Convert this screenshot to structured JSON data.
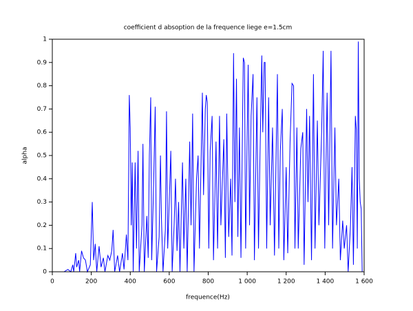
{
  "chart_data": {
    "type": "line",
    "title": "coefficient d absoption de la frequence liege e=1.5cm",
    "xlabel": "frequence(Hz)",
    "ylabel": "alpha",
    "xlim": [
      0,
      1600
    ],
    "ylim": [
      0,
      1
    ],
    "xticks": [
      0,
      200,
      400,
      600,
      800,
      {
        "value": 1000,
        "label": "1 000"
      },
      {
        "value": 1200,
        "label": "1 200"
      },
      {
        "value": 1400,
        "label": "1 400"
      },
      {
        "value": 1600,
        "label": "1 600"
      }
    ],
    "yticks": [
      0,
      0.1,
      0.2,
      0.3,
      0.4,
      0.5,
      0.6,
      0.7,
      0.8,
      0.9,
      1
    ],
    "series": [
      {
        "color": "#0000ff",
        "x": [
          0,
          60,
          80,
          95,
          105,
          110,
          120,
          125,
          135,
          140,
          150,
          160,
          170,
          180,
          195,
          205,
          212,
          220,
          228,
          240,
          250,
          262,
          270,
          285,
          295,
          305,
          312,
          320,
          335,
          345,
          360,
          368,
          380,
          388,
          395,
          400,
          405,
          410,
          415,
          425,
          432,
          440,
          446,
          460,
          465,
          472,
          485,
          492,
          498,
          505,
          510,
          520,
          528,
          535,
          548,
          555,
          560,
          568,
          580,
          586,
          592,
          600,
          608,
          615,
          625,
          632,
          640,
          648,
          655,
          668,
          675,
          685,
          692,
          705,
          712,
          720,
          727,
          740,
          748,
          755,
          770,
          776,
          785,
          790,
          795,
          803,
          810,
          820,
          827,
          840,
          848,
          858,
          865,
          880,
          888,
          895,
          905,
          915,
          922,
          930,
          937,
          945,
          952,
          960,
          968,
          980,
          986,
          992,
          1005,
          1012,
          1020,
          1030,
          1037,
          1050,
          1058,
          1065,
          1075,
          1080,
          1087,
          1092,
          1100,
          1110,
          1118,
          1130,
          1140,
          1155,
          1162,
          1170,
          1180,
          1188,
          1200,
          1208,
          1220,
          1230,
          1238,
          1245,
          1255,
          1262,
          1275,
          1285,
          1292,
          1305,
          1312,
          1320,
          1330,
          1340,
          1348,
          1360,
          1368,
          1382,
          1390,
          1398,
          1410,
          1418,
          1430,
          1438,
          1450,
          1458,
          1470,
          1478,
          1490,
          1498,
          1510,
          1518,
          1530,
          1538,
          1545,
          1555,
          1560,
          1565,
          1570,
          1575,
          1580,
          1585,
          1590,
          1600
        ],
        "values": [
          0,
          0,
          0.01,
          0,
          0.03,
          0,
          0.08,
          0.02,
          0.05,
          0,
          0.09,
          0.06,
          0.05,
          0,
          0.03,
          0.3,
          0.05,
          0.12,
          0,
          0.11,
          0.02,
          0.06,
          0,
          0.07,
          0.05,
          0.09,
          0.18,
          0,
          0.07,
          0,
          0.08,
          0.01,
          0.16,
          0.05,
          0.76,
          0.62,
          0.2,
          0.47,
          0,
          0.47,
          0.1,
          0.52,
          0,
          0.2,
          0.55,
          0,
          0.24,
          0.06,
          0.5,
          0.75,
          0.05,
          0.38,
          0.71,
          0,
          0.15,
          0.5,
          0.23,
          0,
          0.18,
          0.69,
          0.1,
          0.3,
          0.52,
          0,
          0.2,
          0.4,
          0.09,
          0.3,
          0,
          0.47,
          0.1,
          0.4,
          0,
          0.56,
          0.2,
          0.68,
          0,
          0.4,
          0.5,
          0.1,
          0.77,
          0.33,
          0.7,
          0.76,
          0.73,
          0.1,
          0.52,
          0.67,
          0.05,
          0.56,
          0.1,
          0.67,
          0.2,
          0.57,
          0.06,
          0.68,
          0.15,
          0.4,
          0.07,
          0.94,
          0.3,
          0.83,
          0.15,
          0.62,
          0.06,
          0.92,
          0.9,
          0.1,
          0.89,
          0.2,
          0.67,
          0.85,
          0.05,
          0.75,
          0.1,
          0.47,
          0.93,
          0.6,
          0.9,
          0.9,
          0.1,
          0.75,
          0.2,
          0.62,
          0.07,
          0.85,
          0.1,
          0.52,
          0.7,
          0.05,
          0.45,
          0.08,
          0.56,
          0.81,
          0.8,
          0.1,
          0.62,
          0.1,
          0.53,
          0.6,
          0.03,
          0.7,
          0.3,
          0.67,
          0.05,
          0.85,
          0.1,
          0.65,
          0.2,
          0.6,
          0.95,
          0.1,
          0.77,
          0.2,
          0.95,
          0.1,
          0.62,
          0.2,
          0.4,
          0.05,
          0.22,
          0.1,
          0.2,
          0,
          0.2,
          0.45,
          0.03,
          0.67,
          0.61,
          0.1,
          0.99,
          0.4,
          0.3,
          0.27,
          0,
          0
        ]
      }
    ]
  }
}
